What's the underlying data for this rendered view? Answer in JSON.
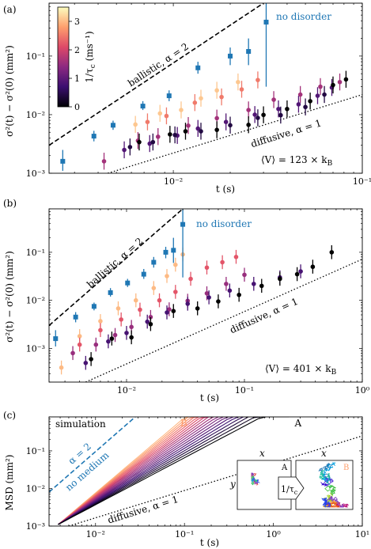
{
  "colors": {
    "no_disorder": "#1f77b4",
    "cmap": [
      "#000004",
      "#3b0f70",
      "#8c2981",
      "#de4968",
      "#fe9f6d",
      "#fcfdbf"
    ],
    "black": "#000000"
  },
  "chart_data": [
    {
      "panel_label": "(a)",
      "type": "scatter",
      "scale": "log-log",
      "xlim": [
        0.0022,
        0.1
      ],
      "ylim": [
        0.001,
        0.8
      ],
      "xlabel": "t (s)",
      "ylabel": "σ²(t) − σ²(0) (mm²)",
      "x_ticks": [
        {
          "v": 0.01,
          "t": "10⁻²"
        },
        {
          "v": 0.1,
          "t": "10⁻¹"
        }
      ],
      "y_ticks": [
        {
          "v": 0.001,
          "t": "10⁻³"
        },
        {
          "v": 0.01,
          "t": "10⁻²"
        },
        {
          "v": 0.1,
          "t": "10⁻¹"
        }
      ],
      "ballistic": {
        "text": "ballistic, α = 2",
        "x0": 0.0022,
        "y0": 0.003,
        "x1": 0.03,
        "y1": 0.8
      },
      "diffusive": {
        "text": "diffusive, α = 1",
        "x0": 0.0045,
        "y0": 0.001,
        "x1": 0.1,
        "y1": 0.022
      },
      "no_disorder_label": "no disorder",
      "potential_text": "⟨V⟩ = 123 × k",
      "potential_sub": "B",
      "colorbar": {
        "label": "1/τ",
        "label_sub": "c",
        "unit": " (ms⁻¹)",
        "ticks": [
          "0",
          "1",
          "2",
          "3"
        ],
        "max": 3.5
      },
      "no_disorder": [
        {
          "x": 0.0026,
          "y": 0.0016,
          "lo": 0.0011,
          "hi": 0.0025
        },
        {
          "x": 0.0038,
          "y": 0.0043,
          "lo": 0.0035,
          "hi": 0.0053
        },
        {
          "x": 0.0048,
          "y": 0.0066,
          "lo": 0.0055,
          "hi": 0.0079
        },
        {
          "x": 0.0069,
          "y": 0.014,
          "lo": 0.012,
          "hi": 0.017
        },
        {
          "x": 0.0095,
          "y": 0.021,
          "lo": 0.017,
          "hi": 0.026
        },
        {
          "x": 0.0135,
          "y": 0.063,
          "lo": 0.05,
          "hi": 0.08
        },
        {
          "x": 0.02,
          "y": 0.1,
          "lo": 0.07,
          "hi": 0.14
        },
        {
          "x": 0.025,
          "y": 0.12,
          "lo": 0.07,
          "hi": 0.2
        },
        {
          "x": 0.031,
          "y": 0.38,
          "lo": 0.03,
          "hi": 0.8
        }
      ],
      "series": [
        {
          "rate": 3.1,
          "points": [
            [
              0.0063,
              0.0068
            ],
            [
              0.0085,
              0.0105
            ],
            [
              0.011,
              0.012
            ],
            [
              0.014,
              0.019
            ],
            [
              0.017,
              0.026
            ],
            [
              0.022,
              0.036
            ]
          ]
        },
        {
          "rate": 2.5,
          "points": [
            [
              0.0073,
              0.0075
            ],
            [
              0.0092,
              0.0095
            ],
            [
              0.013,
              0.016
            ],
            [
              0.018,
              0.02
            ],
            [
              0.023,
              0.027
            ],
            [
              0.028,
              0.039
            ]
          ]
        },
        {
          "rate": 1.6,
          "points": [
            [
              0.0043,
              0.0016
            ],
            [
              0.0065,
              0.0036
            ],
            [
              0.0083,
              0.0042
            ],
            [
              0.012,
              0.0065
            ],
            [
              0.017,
              0.0087
            ],
            [
              0.025,
              0.012
            ],
            [
              0.034,
              0.018
            ],
            [
              0.047,
              0.022
            ],
            [
              0.06,
              0.03
            ],
            [
              0.076,
              0.036
            ]
          ]
        },
        {
          "rate": 0.9,
          "points": [
            [
              0.0055,
              0.0025
            ],
            [
              0.0075,
              0.0032
            ],
            [
              0.0105,
              0.0044
            ],
            [
              0.0135,
              0.0058
            ],
            [
              0.019,
              0.0075
            ],
            [
              0.027,
              0.01
            ],
            [
              0.036,
              0.0125
            ],
            [
              0.046,
              0.015
            ],
            [
              0.058,
              0.021
            ],
            [
              0.069,
              0.029
            ]
          ]
        },
        {
          "rate": 0.4,
          "points": [
            [
              0.0059,
              0.0028
            ],
            [
              0.0078,
              0.0034
            ],
            [
              0.0102,
              0.0045
            ],
            [
              0.014,
              0.0052
            ],
            [
              0.02,
              0.0066
            ],
            [
              0.028,
              0.0088
            ],
            [
              0.037,
              0.0098
            ],
            [
              0.05,
              0.0135
            ],
            [
              0.063,
              0.022
            ]
          ]
        },
        {
          "rate": 0.0,
          "points": [
            [
              0.0066,
              0.0034
            ],
            [
              0.0096,
              0.0046
            ],
            [
              0.0116,
              0.0052
            ],
            [
              0.017,
              0.0055
            ],
            [
              0.025,
              0.0067
            ],
            [
              0.03,
              0.0099
            ],
            [
              0.04,
              0.0125
            ],
            [
              0.053,
              0.017
            ],
            [
              0.07,
              0.032
            ],
            [
              0.082,
              0.04
            ]
          ]
        }
      ]
    },
    {
      "panel_label": "(b)",
      "type": "scatter",
      "scale": "log-log",
      "xlim": [
        0.0022,
        1
      ],
      "ylim": [
        0.0002,
        0.8
      ],
      "xlabel": "t (s)",
      "ylabel": "σ²(t) − σ²(0) (mm²)",
      "x_ticks": [
        {
          "v": 0.01,
          "t": "10⁻²"
        },
        {
          "v": 0.1,
          "t": "10⁻¹"
        },
        {
          "v": 1,
          "t": "10⁰"
        }
      ],
      "y_ticks": [
        {
          "v": 0.001,
          "t": "10⁻³"
        },
        {
          "v": 0.01,
          "t": "10⁻²"
        },
        {
          "v": 0.1,
          "t": "10⁻¹"
        }
      ],
      "ballistic": {
        "text": "ballistic, α = 2",
        "x0": 0.0022,
        "y0": 0.003,
        "x1": 0.03,
        "y1": 0.8
      },
      "diffusive": {
        "text": "diffusive, α = 1",
        "x0": 0.0045,
        "y0": 0.0002,
        "x1": 1,
        "y1": 0.072
      },
      "no_disorder_label": "no disorder",
      "potential_text": "⟨V⟩ = 401 × k",
      "potential_sub": "B",
      "no_disorder": [
        {
          "x": 0.0025,
          "y": 0.0016,
          "lo": 0.0011,
          "hi": 0.0024
        },
        {
          "x": 0.0037,
          "y": 0.0045,
          "lo": 0.0035,
          "hi": 0.0057
        },
        {
          "x": 0.0053,
          "y": 0.0075,
          "lo": 0.0062,
          "hi": 0.009
        },
        {
          "x": 0.0073,
          "y": 0.0145,
          "lo": 0.012,
          "hi": 0.018
        },
        {
          "x": 0.0102,
          "y": 0.023,
          "lo": 0.019,
          "hi": 0.028
        },
        {
          "x": 0.014,
          "y": 0.035,
          "lo": 0.028,
          "hi": 0.045
        },
        {
          "x": 0.017,
          "y": 0.062,
          "lo": 0.048,
          "hi": 0.08
        },
        {
          "x": 0.0215,
          "y": 0.1,
          "lo": 0.075,
          "hi": 0.13
        },
        {
          "x": 0.025,
          "y": 0.11,
          "lo": 0.06,
          "hi": 0.2
        },
        {
          "x": 0.03,
          "y": 0.38,
          "lo": 0.03,
          "hi": 0.8
        }
      ],
      "series": [
        {
          "rate": 3.0,
          "points": [
            [
              0.0028,
              0.0004
            ],
            [
              0.004,
              0.0018
            ],
            [
              0.006,
              0.0037
            ],
            [
              0.0085,
              0.0068
            ],
            [
              0.012,
              0.01
            ],
            [
              0.017,
              0.018
            ],
            [
              0.022,
              0.032
            ],
            [
              0.026,
              0.055
            ],
            [
              0.03,
              0.09
            ]
          ]
        },
        {
          "rate": 2.2,
          "points": [
            [
              0.004,
              0.0012
            ],
            [
              0.006,
              0.0024
            ],
            [
              0.009,
              0.004
            ],
            [
              0.013,
              0.0064
            ],
            [
              0.019,
              0.01
            ],
            [
              0.026,
              0.015
            ],
            [
              0.035,
              0.028
            ],
            [
              0.048,
              0.048
            ],
            [
              0.065,
              0.062
            ],
            [
              0.085,
              0.08
            ]
          ]
        },
        {
          "rate": 1.5,
          "points": [
            [
              0.0035,
              0.0008
            ],
            [
              0.0055,
              0.0012
            ],
            [
              0.008,
              0.0019
            ],
            [
              0.011,
              0.0028
            ],
            [
              0.016,
              0.0045
            ],
            [
              0.023,
              0.0065
            ],
            [
              0.033,
              0.0098
            ],
            [
              0.048,
              0.014
            ],
            [
              0.07,
              0.022
            ],
            [
              0.1,
              0.034
            ]
          ]
        },
        {
          "rate": 0.8,
          "points": [
            [
              0.0045,
              0.0005
            ],
            [
              0.007,
              0.0014
            ],
            [
              0.01,
              0.0021
            ],
            [
              0.015,
              0.0036
            ],
            [
              0.022,
              0.0056
            ],
            [
              0.033,
              0.0085
            ],
            [
              0.05,
              0.0115
            ],
            [
              0.075,
              0.016
            ],
            [
              0.12,
              0.022
            ],
            [
              0.2,
              0.03
            ],
            [
              0.3,
              0.04
            ]
          ]
        },
        {
          "rate": 0.0,
          "points": [
            [
              0.005,
              0.0006
            ],
            [
              0.0075,
              0.0016
            ],
            [
              0.011,
              0.0017
            ],
            [
              0.016,
              0.0032
            ],
            [
              0.025,
              0.006
            ],
            [
              0.04,
              0.0068
            ],
            [
              0.06,
              0.0095
            ],
            [
              0.09,
              0.013
            ],
            [
              0.14,
              0.02
            ],
            [
              0.2,
              0.028
            ],
            [
              0.28,
              0.035
            ],
            [
              0.38,
              0.05
            ],
            [
              0.55,
              0.1
            ]
          ]
        }
      ]
    },
    {
      "panel_label": "(c)",
      "type": "line",
      "scale": "log-log",
      "xlim": [
        0.003,
        10
      ],
      "ylim": [
        0.001,
        0.8
      ],
      "xlabel": "t (s)",
      "ylabel": "MSD (mm²)",
      "x_ticks": [
        {
          "v": 0.01,
          "t": "10⁻²"
        },
        {
          "v": 0.1,
          "t": "10⁻¹"
        },
        {
          "v": 1,
          "t": "10⁰"
        },
        {
          "v": 10,
          "t": "10¹"
        }
      ],
      "y_ticks": [
        {
          "v": 0.001,
          "t": "10⁻³"
        },
        {
          "v": 0.01,
          "t": "10⁻²"
        },
        {
          "v": 0.1,
          "t": "10⁻¹"
        }
      ],
      "simulation_label": "simulation",
      "ballistic": {
        "text": "α = 2",
        "text2": "no medium",
        "x0": 0.003,
        "y0": 0.008,
        "x1": 0.028,
        "y1": 0.8
      },
      "diffusive": {
        "text": "diffusive, α = 1",
        "x0": 0.005,
        "y0": 0.001,
        "x1": 10,
        "y1": 0.25
      },
      "curve_A": "A",
      "curve_B": "B",
      "inset": {
        "x_label": "x",
        "y_label": "y",
        "a_label": "A",
        "b_label": "B",
        "arrow_label": "1/τ",
        "arrow_sub": "c"
      },
      "curves": {
        "count": 18,
        "y_start": 0.0011,
        "t_start": 0.0038,
        "end_t_B": 0.12,
        "end_t_A": 1.5,
        "slope_B": 2.0,
        "slope_A": 1.25
      }
    }
  ]
}
